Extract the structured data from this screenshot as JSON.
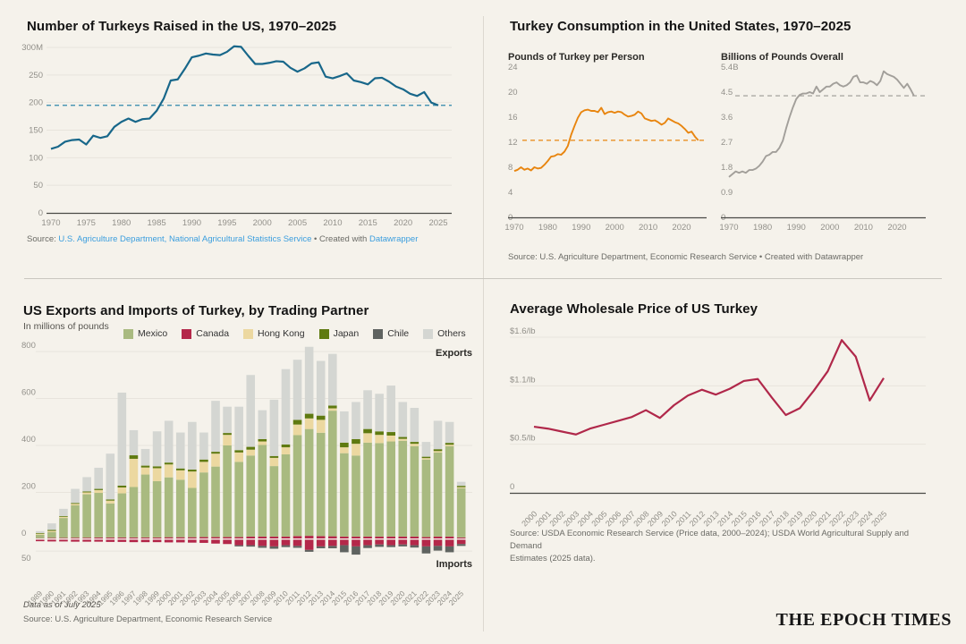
{
  "page": {
    "background": "#f5f2eb",
    "brand": "THE EPOCH TIMES"
  },
  "sections": {
    "q1": {
      "title": "Number of Turkeys Raised in the US, 1970–2025",
      "source": {
        "prefix": "Source: ",
        "link1": "U.S. Agriculture Department, National Agricultural Statistics Service",
        "middle": " • Created with ",
        "link2": "Datawrapper"
      }
    },
    "q2": {
      "title": "Turkey Consumption in the United States, 1970–2025",
      "left_label": "Pounds of Turkey per Person",
      "right_label": "Billions of Pounds Overall",
      "source": "Source: U.S. Agriculture Department, Economic Research Service • Created with Datawrapper"
    },
    "q3": {
      "title": "US Exports and Imports of Turkey, by Trading Partner",
      "subtitle": "In millions of pounds",
      "exports_label": "Exports",
      "imports_label": "Imports",
      "neg_axis_label": "50",
      "note": "Data as of July 2025",
      "source": "Source: U.S. Agriculture Department, Economic Research Service",
      "legend": [
        {
          "label": "Mexico",
          "color": "#a9ba80"
        },
        {
          "label": "Canada",
          "color": "#b4284a"
        },
        {
          "label": "Hong Kong",
          "color": "#ecd8a0"
        },
        {
          "label": "Japan",
          "color": "#5f7a10"
        },
        {
          "label": "Chile",
          "color": "#5f6360"
        },
        {
          "label": "Others",
          "color": "#d4d6d2"
        }
      ]
    },
    "q4": {
      "title": "Average Wholesale Price of US Turkey",
      "source_line1": "Source: USDA Economic Research Service (Price data, 2000–2024); USDA World Agricultural Supply and Demand",
      "source_line2": "Estimates (2025 data)."
    }
  },
  "chart_data": [
    {
      "id": "turkeys_raised",
      "type": "line",
      "title": "Number of Turkeys Raised in the US, 1970–2025",
      "x_start": 1970,
      "x_end": 2025,
      "xticks": [
        1970,
        1975,
        1980,
        1985,
        1990,
        1995,
        2000,
        2005,
        2010,
        2015,
        2020,
        2025
      ],
      "yticks": [
        {
          "v": 300,
          "label": "300M"
        },
        {
          "v": 250,
          "label": "250"
        },
        {
          "v": 200,
          "label": "200"
        },
        {
          "v": 150,
          "label": "150"
        },
        {
          "v": 100,
          "label": "100"
        },
        {
          "v": 50,
          "label": "50"
        },
        {
          "v": 0,
          "label": "0"
        }
      ],
      "ylim": [
        0,
        300
      ],
      "dashed_at": 195,
      "color": "#18678a",
      "values": [
        116,
        120,
        129,
        132,
        133,
        124,
        140,
        136,
        139,
        156,
        165,
        171,
        165,
        170,
        171,
        185,
        207,
        240,
        242,
        261,
        282,
        285,
        289,
        287,
        286,
        292,
        302,
        301,
        285,
        270,
        270,
        272,
        275,
        274,
        263,
        256,
        262,
        271,
        273,
        247,
        244,
        248,
        253,
        240,
        237,
        233,
        244,
        245,
        238,
        229,
        224,
        216,
        212,
        219,
        200,
        195
      ]
    },
    {
      "id": "consumption_per_person",
      "type": "line",
      "title": "Pounds of Turkey per Person",
      "x_start": 1970,
      "x_end": 2025,
      "xticks": [
        1970,
        1980,
        1990,
        2000,
        2010,
        2020
      ],
      "yticks": [
        {
          "v": 24,
          "label": "24"
        },
        {
          "v": 20,
          "label": "20"
        },
        {
          "v": 16,
          "label": "16"
        },
        {
          "v": 12,
          "label": "12"
        },
        {
          "v": 8,
          "label": "8"
        },
        {
          "v": 4,
          "label": "4"
        },
        {
          "v": 0,
          "label": "0"
        }
      ],
      "ylim": [
        0,
        24
      ],
      "dashed_at": 12.3,
      "color": "#e8850f",
      "values": [
        7.4,
        7.6,
        8.0,
        7.6,
        7.8,
        7.5,
        8.0,
        7.8,
        7.9,
        8.4,
        9.0,
        9.7,
        9.8,
        10.1,
        10.0,
        10.5,
        11.4,
        13.2,
        14.6,
        15.9,
        16.8,
        17.1,
        17.2,
        17.0,
        17.0,
        16.8,
        17.5,
        16.5,
        16.8,
        16.9,
        16.7,
        16.9,
        16.8,
        16.4,
        16.1,
        16.2,
        16.4,
        16.9,
        16.6,
        15.8,
        15.6,
        15.4,
        15.5,
        15.2,
        14.8,
        15.1,
        15.8,
        15.5,
        15.2,
        15.0,
        14.6,
        14.1,
        13.5,
        13.7,
        12.9,
        12.3
      ]
    },
    {
      "id": "consumption_overall",
      "type": "line",
      "title": "Billions of Pounds Overall",
      "x_start": 1970,
      "x_end": 2025,
      "xticks": [
        1970,
        1980,
        1990,
        2000,
        2010,
        2020
      ],
      "yticks": [
        {
          "v": 5.4,
          "label": "5.4B"
        },
        {
          "v": 4.5,
          "label": "4.5"
        },
        {
          "v": 3.6,
          "label": "3.6"
        },
        {
          "v": 2.7,
          "label": "2.7"
        },
        {
          "v": 1.8,
          "label": "1.8"
        },
        {
          "v": 0.9,
          "label": "0.9"
        },
        {
          "v": 0,
          "label": "0"
        }
      ],
      "ylim": [
        0,
        5.4
      ],
      "dashed_at": 4.37,
      "color": "#a29f9a",
      "values": [
        1.45,
        1.55,
        1.65,
        1.6,
        1.65,
        1.6,
        1.7,
        1.7,
        1.75,
        1.85,
        2.0,
        2.2,
        2.25,
        2.35,
        2.35,
        2.5,
        2.75,
        3.2,
        3.6,
        3.95,
        4.25,
        4.4,
        4.45,
        4.45,
        4.5,
        4.45,
        4.7,
        4.5,
        4.6,
        4.7,
        4.7,
        4.8,
        4.85,
        4.75,
        4.7,
        4.75,
        4.85,
        5.05,
        5.1,
        4.85,
        4.85,
        4.8,
        4.9,
        4.85,
        4.75,
        4.9,
        5.25,
        5.15,
        5.1,
        5.05,
        4.95,
        4.8,
        4.65,
        4.8,
        4.6,
        4.37
      ]
    },
    {
      "id": "trade_by_partner",
      "type": "bar",
      "title": "US Exports and Imports of Turkey, by Trading Partner",
      "unit": "In millions of pounds",
      "x_start": 1989,
      "x_end": 2025,
      "yticks": [
        {
          "v": 800,
          "label": "800"
        },
        {
          "v": 600,
          "label": "600"
        },
        {
          "v": 400,
          "label": "400"
        },
        {
          "v": 200,
          "label": "200"
        },
        {
          "v": 0,
          "label": "0"
        }
      ],
      "ylim": [
        -70,
        830
      ],
      "export_stack_order": [
        "canada",
        "mexico",
        "hong_kong",
        "japan",
        "others"
      ],
      "import_stack_order": [
        "canada_imports",
        "chile_imports"
      ],
      "series": [
        {
          "name": "canada",
          "color": "#b4284a",
          "values": [
            5,
            6,
            6,
            7,
            7,
            8,
            8,
            8,
            8,
            8,
            8,
            9,
            9,
            9,
            10,
            10,
            10,
            10,
            12,
            12,
            12,
            12,
            14,
            15,
            14,
            13,
            12,
            12,
            12,
            12,
            12,
            12,
            12,
            10,
            12,
            12,
            8
          ]
        },
        {
          "name": "mexico",
          "color": "#a9ba80",
          "values": [
            15,
            25,
            85,
            138,
            185,
            190,
            145,
            188,
            215,
            268,
            240,
            255,
            245,
            210,
            275,
            300,
            390,
            320,
            345,
            390,
            300,
            350,
            430,
            455,
            440,
            535,
            355,
            345,
            400,
            398,
            405,
            408,
            385,
            330,
            358,
            385,
            210
          ]
        },
        {
          "name": "hong_kong",
          "color": "#ecd8a0",
          "values": [
            4,
            5,
            5,
            6,
            8,
            12,
            12,
            25,
            120,
            30,
            55,
            55,
            40,
            70,
            45,
            55,
            45,
            40,
            25,
            15,
            35,
            30,
            45,
            45,
            55,
            10,
            25,
            50,
            40,
            35,
            25,
            8,
            10,
            6,
            6,
            6,
            4
          ]
        },
        {
          "name": "japan",
          "color": "#5f7a10",
          "values": [
            3,
            4,
            3,
            4,
            4,
            5,
            5,
            8,
            15,
            8,
            8,
            8,
            8,
            8,
            10,
            8,
            8,
            10,
            12,
            10,
            8,
            12,
            20,
            20,
            18,
            12,
            20,
            20,
            18,
            15,
            15,
            8,
            8,
            6,
            8,
            8,
            6
          ]
        },
        {
          "name": "others",
          "color": "#d4d6d2",
          "values": [
            8,
            28,
            31,
            60,
            61,
            90,
            195,
            396,
            107,
            71,
            149,
            178,
            153,
            203,
            115,
            217,
            112,
            185,
            306,
            123,
            240,
            321,
            256,
            285,
            233,
            220,
            133,
            158,
            165,
            160,
            198,
            149,
            145,
            63,
            121,
            89,
            17
          ]
        },
        {
          "name": "canada_imports",
          "color": "#b4284a",
          "values": [
            8,
            9,
            9,
            10,
            10,
            10,
            11,
            11,
            12,
            12,
            12,
            13,
            13,
            14,
            15,
            18,
            20,
            25,
            25,
            28,
            30,
            25,
            28,
            45,
            30,
            28,
            25,
            30,
            25,
            22,
            25,
            22,
            25,
            30,
            28,
            30,
            20
          ]
        },
        {
          "name": "chile_imports",
          "color": "#5f6360",
          "values": [
            0,
            0,
            0,
            0,
            0,
            0,
            0,
            0,
            0,
            0,
            0,
            0,
            0,
            0,
            0,
            0,
            0,
            5,
            6,
            8,
            10,
            8,
            8,
            8,
            8,
            10,
            30,
            35,
            12,
            10,
            8,
            8,
            10,
            30,
            20,
            25,
            8
          ]
        }
      ]
    },
    {
      "id": "wholesale_price",
      "type": "line",
      "title": "Average Wholesale Price of US Turkey",
      "x_start": 2000,
      "x_end": 2025,
      "yticks": [
        {
          "v": 1.6,
          "label": "$1.6/lb"
        },
        {
          "v": 1.1,
          "label": "$1.1/lb"
        },
        {
          "v": 0.5,
          "label": "$0.5/lb"
        },
        {
          "v": 0,
          "label": "0"
        }
      ],
      "ylim": [
        0,
        1.65
      ],
      "color": "#b0284a",
      "values": [
        0.68,
        0.66,
        0.63,
        0.6,
        0.66,
        0.7,
        0.74,
        0.78,
        0.85,
        0.77,
        0.9,
        1.0,
        1.06,
        1.01,
        1.07,
        1.15,
        1.17,
        0.98,
        0.8,
        0.87,
        1.05,
        1.25,
        1.57,
        1.4,
        0.95,
        1.18
      ]
    }
  ]
}
